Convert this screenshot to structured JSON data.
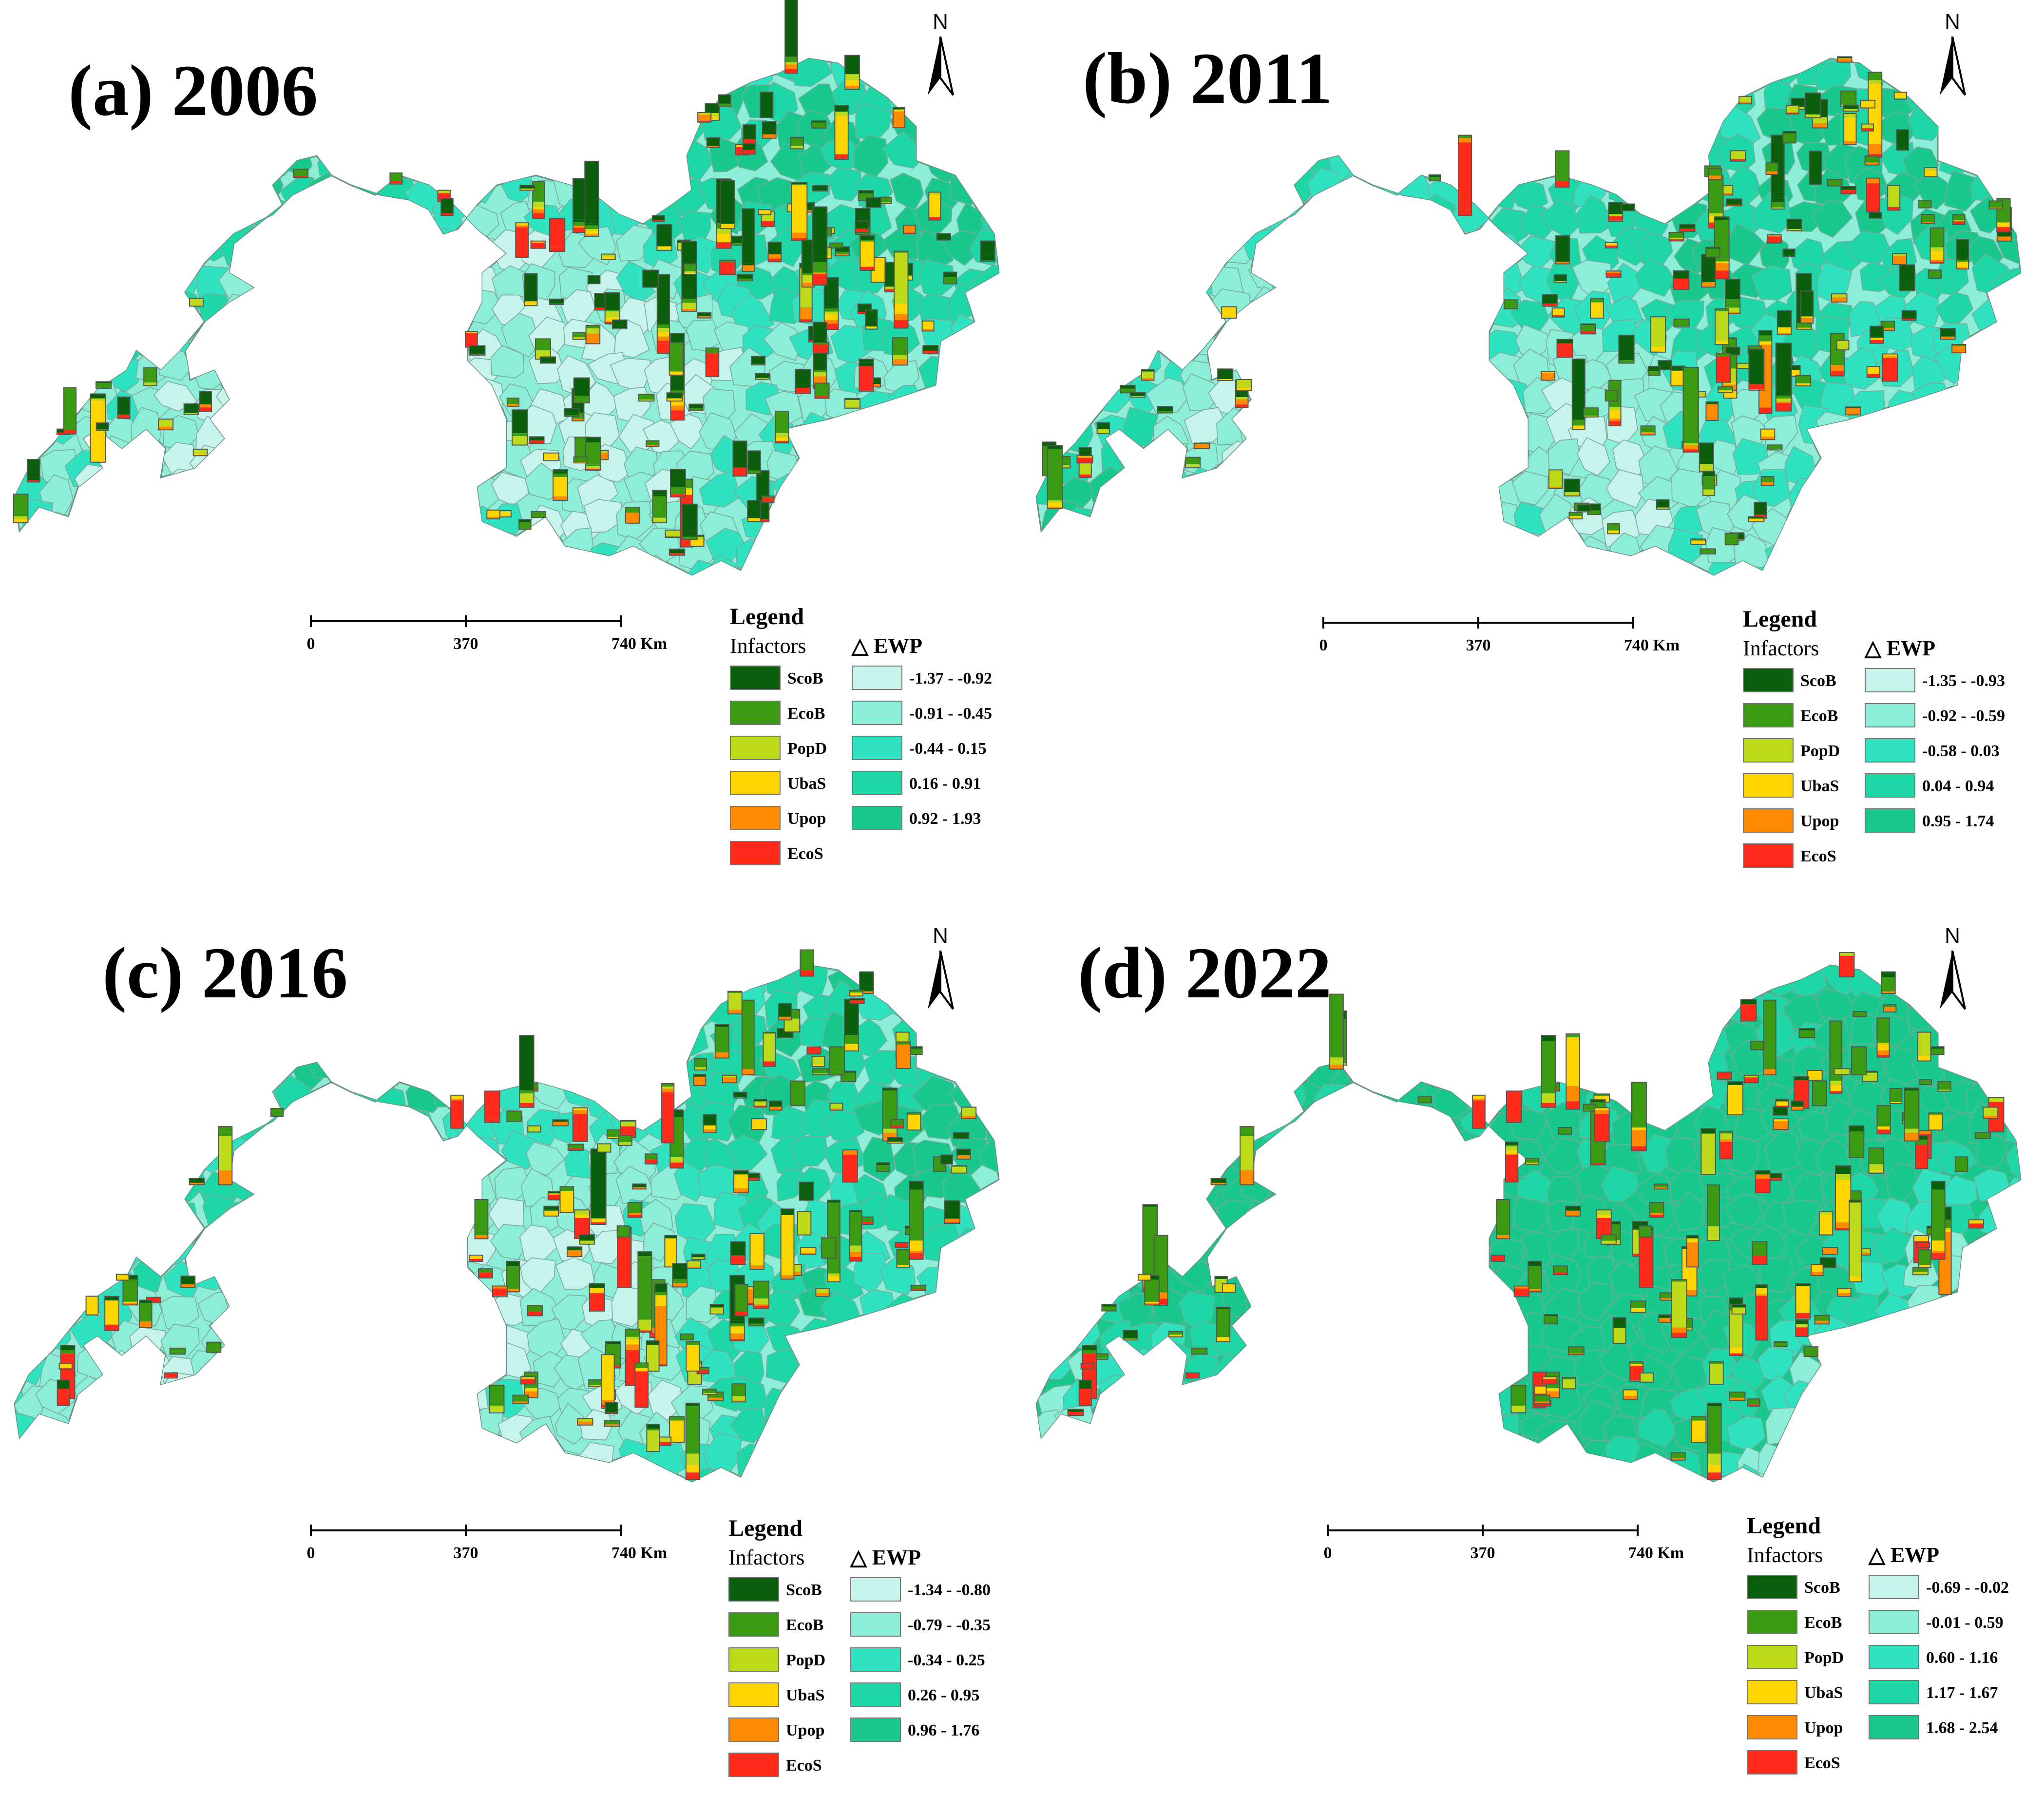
{
  "colors": {
    "infactors": {
      "ScoB": "#0b5e0b",
      "EcoB": "#3a9a12",
      "PopD": "#bcd91a",
      "UbaS": "#ffd500",
      "Upop": "#ff8a00",
      "EcoS": "#ff2a1a"
    },
    "ewp_classes": [
      "#c6f4ea",
      "#8ceed6",
      "#2fe3c0",
      "#1ed7a6",
      "#18c88c"
    ]
  },
  "panels": [
    {
      "title": "(a) 2006",
      "north": "N",
      "scale": {
        "labels": [
          "0",
          "370",
          "740 Km"
        ]
      },
      "legend": {
        "title": "Legend",
        "infactors_label": "Infactors",
        "ewp_label": "△ EWP",
        "infactors": [
          "ScoB",
          "EcoB",
          "PopD",
          "UbaS",
          "Upop",
          "EcoS"
        ],
        "ewp_classes": [
          "-1.37 - -0.92",
          "-0.91 - -0.45",
          "-0.44 - 0.15",
          "0.16 - 0.91",
          "0.92 - 1.93"
        ]
      }
    },
    {
      "title": "(b) 2011",
      "north": "N",
      "scale": {
        "labels": [
          "0",
          "370",
          "740 Km"
        ]
      },
      "legend": {
        "title": "Legend",
        "infactors_label": "Infactors",
        "ewp_label": "△ EWP",
        "infactors": [
          "ScoB",
          "EcoB",
          "PopD",
          "UbaS",
          "Upop",
          "EcoS"
        ],
        "ewp_classes": [
          "-1.35 - -0.93",
          "-0.92 - -0.59",
          "-0.58 - 0.03",
          "0.04 - 0.94",
          "0.95 - 1.74"
        ]
      }
    },
    {
      "title": "(c) 2016",
      "north": "N",
      "scale": {
        "labels": [
          "0",
          "370",
          "740 Km"
        ]
      },
      "legend": {
        "title": "Legend",
        "infactors_label": "Infactors",
        "ewp_label": "△ EWP",
        "infactors": [
          "ScoB",
          "EcoB",
          "PopD",
          "UbaS",
          "Upop",
          "EcoS"
        ],
        "ewp_classes": [
          "-1.34 - -0.80",
          "-0.79 - -0.35",
          "-0.34 - 0.25",
          "0.26 - 0.95",
          "0.96 - 1.76"
        ]
      }
    },
    {
      "title": "(d) 2022",
      "north": "N",
      "scale": {
        "labels": [
          "0",
          "370",
          "740 Km"
        ]
      },
      "legend": {
        "title": "Legend",
        "infactors_label": "Infactors",
        "ewp_label": "△ EWP",
        "infactors": [
          "ScoB",
          "EcoB",
          "PopD",
          "UbaS",
          "Upop",
          "EcoS"
        ],
        "ewp_classes": [
          "-0.69 - -0.02",
          "-0.01 - 0.59",
          "0.60 - 1.16",
          "1.17 - 1.67",
          "1.68 - 2.54"
        ]
      }
    }
  ]
}
